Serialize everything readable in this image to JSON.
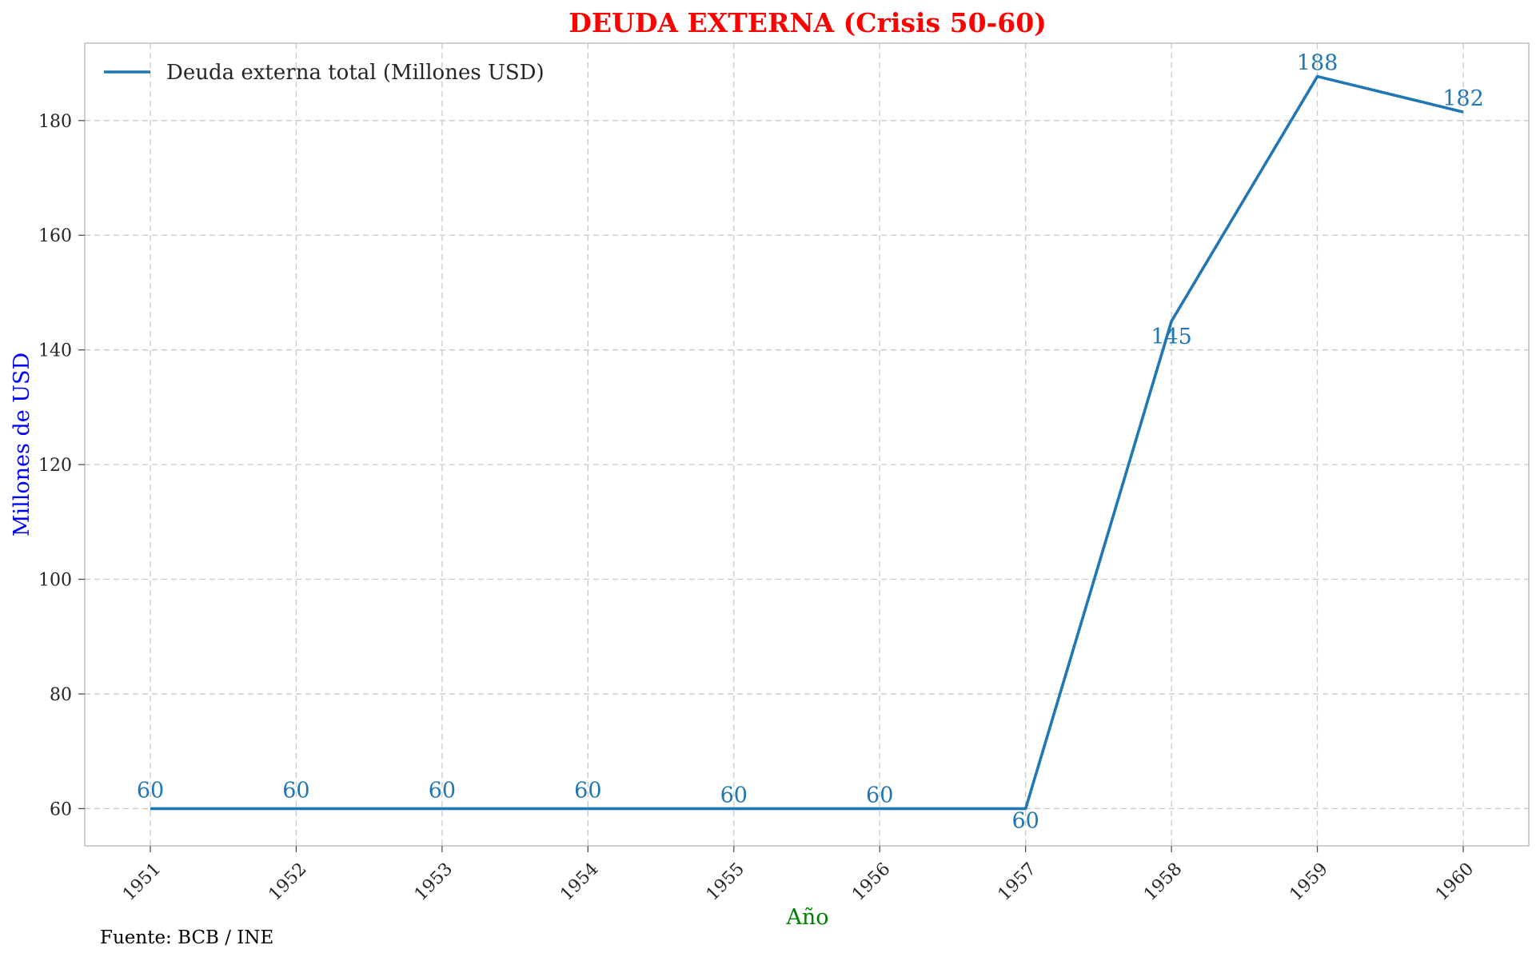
{
  "chart_data": {
    "type": "line",
    "title": "DEUDA EXTERNA (Crisis 50-60)",
    "xlabel": "Año",
    "ylabel": "Millones de USD",
    "source": "Fuente: BCB / INE",
    "x": [
      "1951",
      "1952",
      "1953",
      "1954",
      "1955",
      "1956",
      "1957",
      "1958",
      "1959",
      "1960"
    ],
    "series": [
      {
        "name": "Deuda externa total (Millones USD)",
        "values": [
          60,
          60,
          60,
          60,
          60,
          60,
          60,
          145,
          188,
          182
        ],
        "precise_values": [
          60,
          60,
          60,
          60,
          60,
          60,
          60,
          145,
          187.7,
          181.5
        ],
        "data_labels": [
          "60",
          "60",
          "60",
          "60",
          "60",
          "60",
          "60",
          "145",
          "188",
          "182"
        ]
      }
    ],
    "yticks": [
      60,
      80,
      100,
      120,
      140,
      160,
      180
    ],
    "ylim": [
      53.5,
      193.5
    ],
    "grid": true,
    "legend_position": "top-left",
    "colors": {
      "line": "#1f77b4",
      "title": "#ff0000",
      "xlabel": "#008000",
      "ylabel": "#0000ff",
      "grid": "#c8c8c8",
      "spine": "#bfbfbf"
    }
  }
}
